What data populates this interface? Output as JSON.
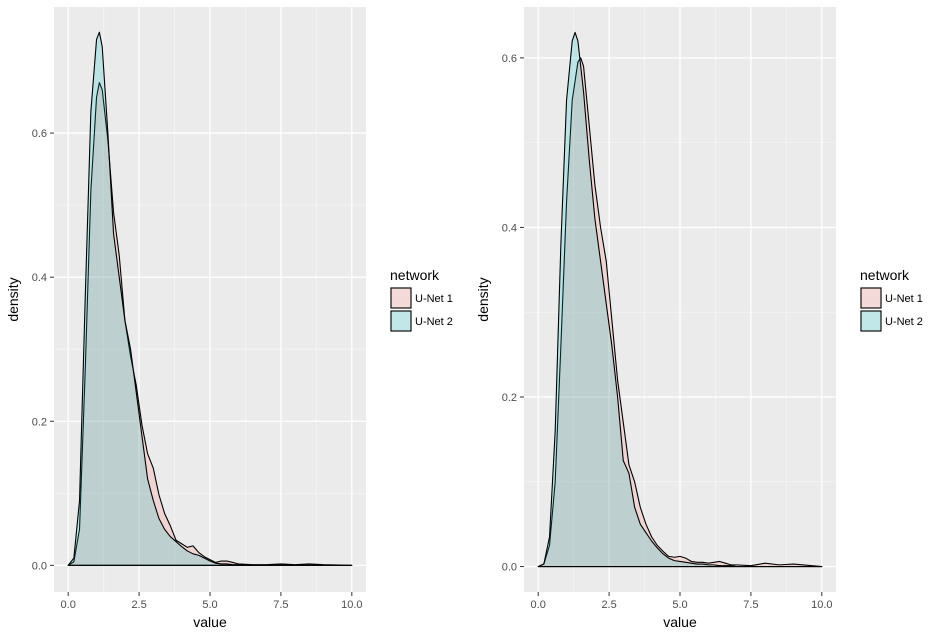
{
  "chart_data": [
    {
      "type": "area",
      "xlabel": "value",
      "ylabel": "density",
      "xlim": [
        -0.5,
        10.5
      ],
      "ylim": [
        -0.037,
        0.775
      ],
      "x_ticks": [
        0.0,
        2.5,
        5.0,
        7.5,
        10.0
      ],
      "x_tick_labels": [
        "0.0",
        "2.5",
        "5.0",
        "7.5",
        "10.0"
      ],
      "y_ticks": [
        0.0,
        0.2,
        0.4,
        0.6
      ],
      "y_tick_labels": [
        "0.0",
        "0.2",
        "0.4",
        "0.6"
      ],
      "grid": true,
      "legend": {
        "title": "network",
        "placement": "right",
        "entries": [
          "U-Net 1",
          "U-Net 2"
        ]
      },
      "series": [
        {
          "name": "U-Net 1",
          "fill": "#F8766D",
          "x": [
            0.0,
            0.2,
            0.4,
            0.6,
            0.8,
            1.0,
            1.1,
            1.2,
            1.4,
            1.6,
            1.8,
            2.0,
            2.2,
            2.4,
            2.6,
            2.8,
            3.0,
            3.2,
            3.4,
            3.6,
            3.8,
            4.0,
            4.2,
            4.4,
            4.6,
            4.8,
            5.0,
            5.2,
            5.4,
            5.6,
            5.8,
            6.0,
            6.5,
            7.0,
            7.5,
            8.0,
            8.5,
            9.0,
            10.0
          ],
          "y": [
            0.0,
            0.005,
            0.05,
            0.27,
            0.52,
            0.65,
            0.67,
            0.66,
            0.59,
            0.49,
            0.43,
            0.34,
            0.29,
            0.25,
            0.195,
            0.155,
            0.135,
            0.098,
            0.072,
            0.055,
            0.035,
            0.03,
            0.025,
            0.027,
            0.018,
            0.012,
            0.008,
            0.004,
            0.006,
            0.006,
            0.004,
            0.002,
            0.001,
            0.001,
            0.002,
            0.001,
            0.002,
            0.001,
            0.0
          ]
        },
        {
          "name": "U-Net 2",
          "fill": "#00BFC4",
          "x": [
            0.0,
            0.2,
            0.4,
            0.6,
            0.8,
            1.0,
            1.1,
            1.2,
            1.4,
            1.6,
            1.8,
            2.0,
            2.2,
            2.4,
            2.6,
            2.8,
            3.0,
            3.2,
            3.4,
            3.6,
            3.8,
            4.0,
            4.2,
            4.4,
            4.6,
            4.8,
            5.0,
            5.2,
            5.4,
            5.6,
            5.8,
            6.0,
            6.5,
            7.0,
            7.5,
            8.0,
            8.5,
            9.0,
            10.0
          ],
          "y": [
            0.0,
            0.01,
            0.09,
            0.37,
            0.63,
            0.73,
            0.74,
            0.72,
            0.6,
            0.46,
            0.4,
            0.34,
            0.3,
            0.24,
            0.18,
            0.12,
            0.09,
            0.065,
            0.05,
            0.04,
            0.033,
            0.026,
            0.02,
            0.016,
            0.014,
            0.01,
            0.006,
            0.003,
            0.002,
            0.002,
            0.001,
            0.001,
            0.0,
            0.0,
            0.0,
            0.0,
            0.0,
            0.0,
            0.0
          ]
        }
      ]
    },
    {
      "type": "area",
      "xlabel": "value",
      "ylabel": "density",
      "xlim": [
        -0.5,
        10.5
      ],
      "ylim": [
        -0.03,
        0.66
      ],
      "x_ticks": [
        0.0,
        2.5,
        5.0,
        7.5,
        10.0
      ],
      "x_tick_labels": [
        "0.0",
        "2.5",
        "5.0",
        "7.5",
        "10.0"
      ],
      "y_ticks": [
        0.0,
        0.2,
        0.4,
        0.6
      ],
      "y_tick_labels": [
        "0.0",
        "0.2",
        "0.4",
        "0.6"
      ],
      "grid": true,
      "legend": {
        "title": "network",
        "placement": "right",
        "entries": [
          "U-Net 1",
          "U-Net 2"
        ]
      },
      "series": [
        {
          "name": "U-Net 1",
          "fill": "#F8766D",
          "x": [
            0.0,
            0.2,
            0.4,
            0.6,
            0.8,
            1.0,
            1.2,
            1.4,
            1.5,
            1.6,
            1.8,
            2.0,
            2.2,
            2.4,
            2.6,
            2.8,
            3.0,
            3.2,
            3.4,
            3.6,
            3.8,
            4.0,
            4.2,
            4.4,
            4.6,
            4.8,
            5.0,
            5.2,
            5.4,
            5.6,
            5.8,
            6.0,
            6.2,
            6.4,
            6.6,
            6.8,
            7.0,
            7.5,
            8.0,
            8.5,
            9.0,
            10.0
          ],
          "y": [
            0.0,
            0.003,
            0.025,
            0.1,
            0.26,
            0.43,
            0.55,
            0.595,
            0.6,
            0.59,
            0.52,
            0.45,
            0.4,
            0.36,
            0.29,
            0.22,
            0.17,
            0.12,
            0.1,
            0.07,
            0.05,
            0.035,
            0.025,
            0.018,
            0.012,
            0.011,
            0.012,
            0.01,
            0.006,
            0.005,
            0.005,
            0.004,
            0.005,
            0.006,
            0.004,
            0.002,
            0.002,
            0.001,
            0.004,
            0.002,
            0.003,
            0.0
          ]
        },
        {
          "name": "U-Net 2",
          "fill": "#00BFC4",
          "x": [
            0.0,
            0.2,
            0.4,
            0.6,
            0.8,
            1.0,
            1.2,
            1.3,
            1.4,
            1.6,
            1.8,
            2.0,
            2.2,
            2.4,
            2.6,
            2.8,
            3.0,
            3.2,
            3.4,
            3.6,
            3.8,
            4.0,
            4.2,
            4.4,
            4.6,
            4.8,
            5.0,
            5.2,
            5.4,
            5.6,
            5.8,
            6.0,
            6.2,
            6.4,
            6.6,
            6.8,
            7.0,
            7.5,
            8.0,
            8.5,
            9.0,
            10.0
          ],
          "y": [
            0.0,
            0.003,
            0.035,
            0.16,
            0.38,
            0.55,
            0.62,
            0.63,
            0.62,
            0.56,
            0.48,
            0.41,
            0.36,
            0.31,
            0.26,
            0.2,
            0.125,
            0.11,
            0.07,
            0.05,
            0.04,
            0.03,
            0.022,
            0.015,
            0.01,
            0.007,
            0.006,
            0.005,
            0.004,
            0.003,
            0.003,
            0.002,
            0.002,
            0.001,
            0.001,
            0.001,
            0.0,
            0.0,
            0.0,
            0.0,
            0.0,
            0.0
          ]
        }
      ]
    }
  ]
}
